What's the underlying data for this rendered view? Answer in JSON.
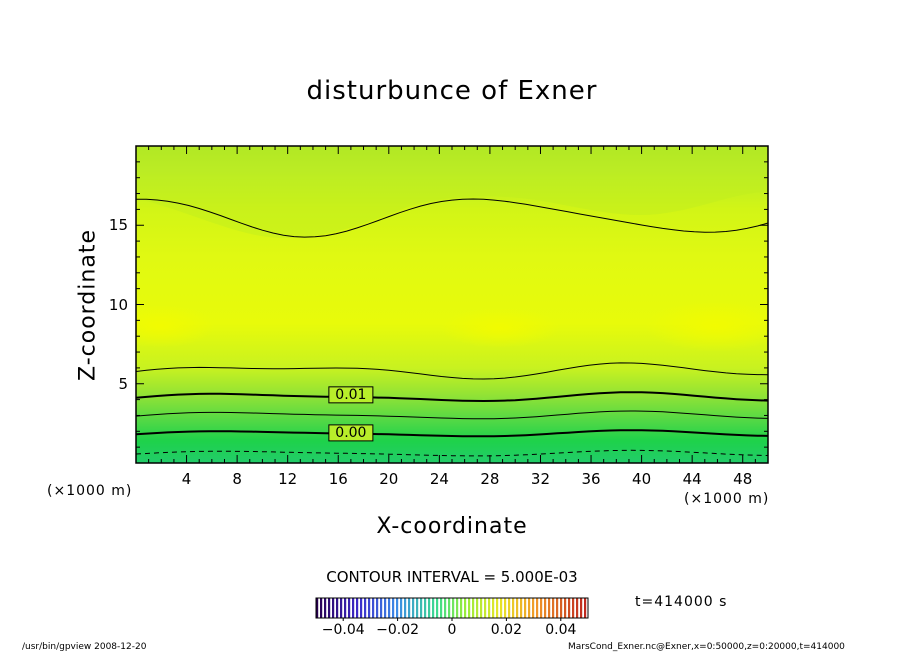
{
  "chart_data": {
    "type": "heatmap",
    "title": "disturbunce of Exner",
    "xlabel": "X-coordinate",
    "ylabel": "Z-coordinate",
    "x_unit": "(×1000 m)",
    "y_unit": "(×1000 m)",
    "xlim": [
      0,
      50
    ],
    "ylim": [
      0,
      20
    ],
    "x_ticks": [
      4,
      8,
      12,
      16,
      20,
      24,
      28,
      32,
      36,
      40,
      44,
      48
    ],
    "y_ticks": [
      5,
      10,
      15
    ],
    "contour_interval": "CONTOUR INTERVAL = 5.000E-03",
    "contour_labels": [
      {
        "value": 0.01,
        "text": "0.01",
        "x": 17,
        "z": 4.3
      },
      {
        "value": 0.0,
        "text": "0.00",
        "x": 17,
        "z": 1.9
      }
    ],
    "colorbar": {
      "tick_labels": [
        "−0.04",
        "−0.02",
        "0",
        "0.02",
        "0.04"
      ],
      "tick_values": [
        -0.04,
        -0.02,
        0,
        0.02,
        0.04
      ],
      "range": [
        -0.05,
        0.05
      ]
    },
    "time_label": "t=414000 s",
    "footer_left": "/usr/bin/gpview   2008-12-20",
    "footer_right": "MarsCond_Exner.nc@Exner,x=0:50000,z=0:20000,t=414000"
  }
}
